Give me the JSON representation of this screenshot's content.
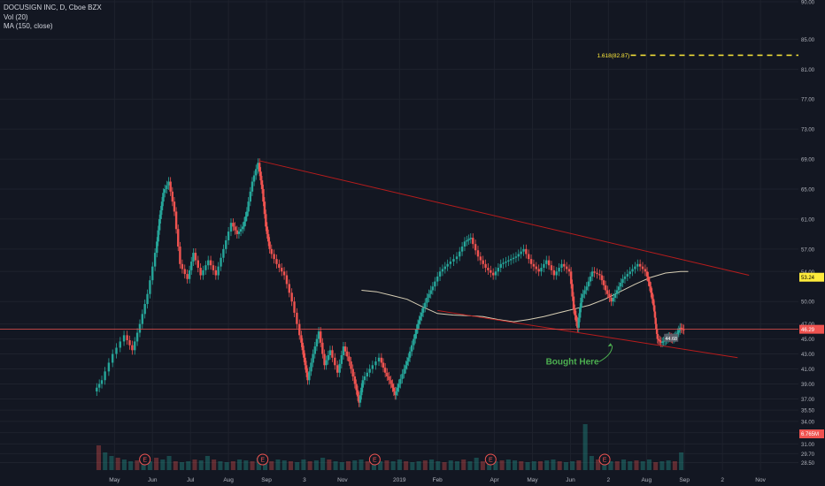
{
  "legend": {
    "symbol": "DOCUSIGN INC, D, Cboe BZX",
    "volume": "Vol (20)",
    "moving_average": "MA (150, close)"
  },
  "colors": {
    "background": "#131722",
    "up": "#26a69a",
    "down": "#ef5350",
    "trendline": "#b71c1c",
    "ma": "#d8cfb5",
    "fib": "#ffeb3b",
    "annotation": "#4caf50",
    "axis_text": "#b2b5be",
    "price_line": "#ef5350"
  },
  "chart_data": {
    "type": "candlestick",
    "title": "DOCUSIGN INC, D, Cboe BZX",
    "xlabel": "",
    "ylabel": "",
    "ylim": [
      27.5,
      90
    ],
    "grid": true,
    "price_axis_ticks": [
      "90.00",
      "85.00",
      "81.00",
      "77.00",
      "73.00",
      "69.00",
      "65.00",
      "61.00",
      "57.00",
      "54.00",
      "50.00",
      "47.00",
      "45.00",
      "43.00",
      "41.00",
      "39.00",
      "37.00",
      "35.50",
      "34.00",
      "32.50",
      "31.00",
      "29.70",
      "28.50"
    ],
    "time_axis_labels": [
      "May",
      "Jun",
      "Jul",
      "Aug",
      "Sep",
      "3",
      "Nov",
      "2019",
      "Feb",
      "Apr",
      "May",
      "Jun",
      "2",
      "Aug",
      "Sep",
      "2",
      "Nov"
    ],
    "time_axis_positions": [
      0.5,
      1.5,
      2.5,
      3.5,
      4.5,
      5.5,
      6.5,
      8.0,
      9.0,
      10.5,
      11.5,
      12.5,
      13.5,
      14.5,
      15.5,
      16.5,
      17.5
    ],
    "price_series": [
      [
        0.0,
        38.0
      ],
      [
        0.2,
        39.5
      ],
      [
        0.5,
        43.0
      ],
      [
        0.8,
        45.5
      ],
      [
        1.0,
        43.5
      ],
      [
        1.2,
        47.0
      ],
      [
        1.4,
        51.0
      ],
      [
        1.6,
        56.5
      ],
      [
        1.7,
        61.0
      ],
      [
        1.8,
        64.5
      ],
      [
        1.95,
        66.0
      ],
      [
        2.1,
        62.0
      ],
      [
        2.25,
        55.0
      ],
      [
        2.45,
        53.0
      ],
      [
        2.6,
        56.5
      ],
      [
        2.8,
        53.5
      ],
      [
        3.0,
        55.5
      ],
      [
        3.2,
        53.5
      ],
      [
        3.4,
        57.0
      ],
      [
        3.6,
        60.5
      ],
      [
        3.75,
        59.0
      ],
      [
        3.9,
        60.0
      ],
      [
        4.0,
        62.0
      ],
      [
        4.15,
        66.0
      ],
      [
        4.3,
        68.5
      ],
      [
        4.4,
        65.0
      ],
      [
        4.5,
        60.0
      ],
      [
        4.6,
        57.0
      ],
      [
        4.8,
        55.0
      ],
      [
        5.0,
        53.5
      ],
      [
        5.2,
        50.0
      ],
      [
        5.4,
        45.5
      ],
      [
        5.5,
        42.5
      ],
      [
        5.6,
        39.5
      ],
      [
        5.75,
        43.0
      ],
      [
        5.9,
        46.0
      ],
      [
        6.05,
        41.5
      ],
      [
        6.2,
        43.5
      ],
      [
        6.4,
        40.5
      ],
      [
        6.55,
        44.0
      ],
      [
        6.7,
        42.0
      ],
      [
        6.85,
        39.0
      ],
      [
        6.95,
        36.5
      ],
      [
        7.05,
        39.5
      ],
      [
        7.25,
        41.0
      ],
      [
        7.5,
        42.5
      ],
      [
        7.65,
        40.5
      ],
      [
        7.8,
        39.0
      ],
      [
        7.9,
        37.5
      ],
      [
        8.0,
        39.0
      ],
      [
        8.15,
        41.0
      ],
      [
        8.25,
        42.5
      ],
      [
        8.4,
        45.0
      ],
      [
        8.5,
        47.0
      ],
      [
        8.6,
        48.5
      ],
      [
        8.75,
        50.5
      ],
      [
        8.9,
        52.0
      ],
      [
        9.1,
        54.0
      ],
      [
        9.3,
        55.0
      ],
      [
        9.55,
        56.0
      ],
      [
        9.75,
        58.0
      ],
      [
        9.9,
        58.5
      ],
      [
        10.1,
        56.0
      ],
      [
        10.3,
        54.5
      ],
      [
        10.5,
        53.5
      ],
      [
        10.7,
        55.0
      ],
      [
        10.9,
        55.5
      ],
      [
        11.1,
        56.0
      ],
      [
        11.3,
        57.0
      ],
      [
        11.5,
        55.0
      ],
      [
        11.7,
        54.0
      ],
      [
        11.9,
        55.5
      ],
      [
        12.1,
        53.5
      ],
      [
        12.3,
        55.0
      ],
      [
        12.5,
        54.0
      ],
      [
        12.6,
        49.0
      ],
      [
        12.7,
        46.5
      ],
      [
        12.8,
        50.5
      ],
      [
        12.95,
        52.0
      ],
      [
        13.1,
        54.0
      ],
      [
        13.3,
        53.5
      ],
      [
        13.45,
        51.5
      ],
      [
        13.6,
        50.0
      ],
      [
        13.75,
        51.5
      ],
      [
        13.9,
        53.0
      ],
      [
        14.1,
        54.0
      ],
      [
        14.3,
        55.0
      ],
      [
        14.5,
        54.0
      ],
      [
        14.6,
        52.0
      ],
      [
        14.7,
        49.5
      ],
      [
        14.75,
        47.0
      ],
      [
        14.8,
        45.0
      ],
      [
        14.9,
        44.5
      ],
      [
        15.0,
        44.8
      ],
      [
        15.1,
        45.3
      ],
      [
        15.2,
        45.0
      ],
      [
        15.3,
        45.5
      ],
      [
        15.4,
        46.5
      ],
      [
        15.5,
        46.2
      ]
    ],
    "ma_series": [
      [
        7.0,
        51.5
      ],
      [
        7.4,
        51.3
      ],
      [
        7.8,
        50.8
      ],
      [
        8.2,
        50.3
      ],
      [
        8.6,
        49.3
      ],
      [
        9.0,
        48.4
      ],
      [
        9.4,
        48.2
      ],
      [
        9.8,
        48.1
      ],
      [
        10.2,
        48.0
      ],
      [
        10.6,
        47.6
      ],
      [
        11.0,
        47.3
      ],
      [
        11.4,
        47.6
      ],
      [
        11.8,
        48.0
      ],
      [
        12.2,
        48.5
      ],
      [
        12.6,
        49.0
      ],
      [
        13.0,
        49.5
      ],
      [
        13.4,
        50.3
      ],
      [
        13.8,
        51.3
      ],
      [
        14.2,
        52.3
      ],
      [
        14.6,
        53.2
      ],
      [
        15.0,
        53.8
      ],
      [
        15.4,
        54.0
      ],
      [
        15.6,
        54.0
      ]
    ],
    "volume_series": [
      1.4,
      1.0,
      0.8,
      0.7,
      0.6,
      0.5,
      0.55,
      0.6,
      0.5,
      0.7,
      0.6,
      0.8,
      0.5,
      0.45,
      0.5,
      0.6,
      0.55,
      0.8,
      0.6,
      0.5,
      0.45,
      0.5,
      0.6,
      0.55,
      0.5,
      0.7,
      0.45,
      0.5,
      0.6,
      0.55,
      0.5,
      0.45,
      0.6,
      0.5,
      0.55,
      0.7,
      0.6,
      0.5,
      0.45,
      0.5,
      0.55,
      0.6,
      0.5,
      0.45,
      0.5,
      0.55,
      0.5,
      0.6,
      0.5,
      0.45,
      0.5,
      0.55,
      0.6,
      0.5,
      0.45,
      0.55,
      0.5,
      0.6,
      0.5,
      0.7,
      0.5,
      0.45,
      0.5,
      0.55,
      0.6,
      0.55,
      0.5,
      0.45,
      0.5,
      0.5,
      0.55,
      0.6,
      0.5,
      0.45,
      0.5,
      0.55,
      2.6,
      0.8,
      0.6,
      0.55,
      0.5,
      0.5,
      0.6,
      0.5,
      0.55,
      0.5,
      0.6,
      0.45,
      0.5,
      0.55,
      0.5,
      1.0
    ],
    "earnings_markers": [
      1.3,
      4.4,
      7.35,
      10.4,
      13.4
    ],
    "earnings_label": "E",
    "resistance_line": [
      [
        4.3,
        68.8
      ],
      [
        17.2,
        53.5
      ]
    ],
    "support_line": [
      [
        9.0,
        48.8
      ],
      [
        16.9,
        42.5
      ]
    ],
    "fib_level": {
      "label": "1.618(82.87)",
      "value": 82.87,
      "x_start": 13.2
    },
    "current_price": {
      "label": "46.29",
      "value": 46.29
    },
    "ma_value": {
      "label": "53.24",
      "value": 53.24
    },
    "volume_value": {
      "label": "6.765M",
      "value": 6.765
    },
    "price_badge": {
      "label": "44.68",
      "x": 15.15,
      "value": 45.1
    },
    "annotation": {
      "text": "Bought Here",
      "x": 12.55,
      "y": 41.6,
      "arrow_to": [
        13.6,
        44.1
      ]
    }
  }
}
